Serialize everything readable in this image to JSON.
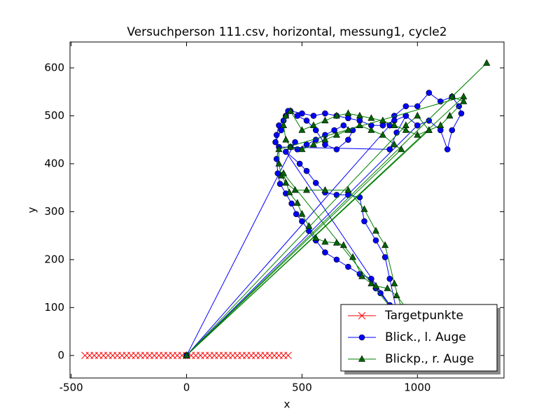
{
  "chart_data": {
    "type": "line",
    "title": "Versuchperson 111.csv, horizontal, messung1, cycle2",
    "x_label": "x",
    "y_label": "y",
    "xlim": [
      -505,
      1375
    ],
    "ylim": [
      -47,
      654
    ],
    "xticks": [
      -500,
      0,
      500,
      1000
    ],
    "yticks": [
      0,
      100,
      200,
      300,
      400,
      500,
      600
    ],
    "legend": "lower right",
    "series": [
      {
        "name": "Targetpunkte",
        "color": "#ff0000",
        "marker": "x",
        "line": false,
        "x": [
          -440,
          -420,
          -400,
          -380,
          -360,
          -340,
          -320,
          -300,
          -280,
          -260,
          -240,
          -220,
          -200,
          -180,
          -160,
          -140,
          -120,
          -100,
          -80,
          -60,
          -40,
          -20,
          0,
          20,
          40,
          60,
          80,
          100,
          120,
          140,
          160,
          180,
          200,
          220,
          240,
          260,
          280,
          300,
          320,
          340,
          360,
          380,
          400,
          420,
          440
        ],
        "values": [
          0,
          0,
          0,
          0,
          0,
          0,
          0,
          0,
          0,
          0,
          0,
          0,
          0,
          0,
          0,
          0,
          0,
          0,
          0,
          0,
          0,
          0,
          0,
          0,
          0,
          0,
          0,
          0,
          0,
          0,
          0,
          0,
          0,
          0,
          0,
          0,
          0,
          0,
          0,
          0,
          0,
          0,
          0,
          0,
          0
        ]
      },
      {
        "name": "Blick., l. Auge",
        "color": "#0000ff",
        "marker": "o",
        "line": true,
        "x": [
          0,
          880,
          900,
          950,
          1000,
          1050,
          1100,
          1150,
          1180,
          1190,
          1150,
          1130,
          1100,
          1050,
          1000,
          950,
          900,
          850,
          800,
          750,
          700,
          650,
          600,
          550,
          500,
          450,
          420,
          400,
          390,
          385,
          410,
          430,
          440,
          480,
          520,
          560,
          600,
          650,
          700,
          720,
          680,
          640,
          600,
          560,
          520,
          480,
          450,
          470,
          0,
          1000,
          950,
          910,
          880,
          400,
          390,
          395,
          405,
          430,
          455,
          475,
          500,
          530,
          560,
          600,
          650,
          700,
          750,
          800,
          820,
          840,
          880,
          430,
          490,
          520,
          560,
          600,
          650,
          700,
          750,
          770,
          820,
          860,
          880,
          920
        ],
        "values": [
          0,
          480,
          500,
          520,
          520,
          548,
          530,
          540,
          520,
          505,
          470,
          430,
          470,
          490,
          480,
          500,
          490,
          480,
          480,
          490,
          495,
          500,
          505,
          500,
          505,
          510,
          490,
          480,
          460,
          445,
          470,
          500,
          510,
          500,
          490,
          470,
          440,
          430,
          450,
          470,
          480,
          470,
          460,
          450,
          440,
          430,
          435,
          445,
          0,
          480,
          500,
          465,
          430,
          435,
          410,
          380,
          358,
          338,
          317,
          295,
          280,
          260,
          240,
          215,
          200,
          185,
          170,
          160,
          140,
          130,
          105,
          425,
          400,
          385,
          360,
          340,
          335,
          335,
          330,
          280,
          240,
          205,
          160,
          70
        ]
      },
      {
        "name": "Blickp., r. Auge",
        "color": "#008000",
        "marker": "^",
        "line": true,
        "x": [
          0,
          1300,
          1150,
          1200,
          1140,
          1100,
          1050,
          1000,
          950,
          900,
          850,
          800,
          750,
          700,
          650,
          600,
          550,
          500,
          450,
          430,
          420,
          430,
          450,
          500,
          550,
          600,
          650,
          700,
          750,
          800,
          850,
          900,
          930,
          0,
          1050,
          1000,
          950,
          0,
          1200,
          400,
          400,
          410,
          430,
          470,
          520,
          600,
          700,
          770,
          820,
          860,
          900,
          930,
          950,
          420,
          445,
          480,
          500,
          530,
          560,
          600,
          650,
          680,
          720,
          760,
          800,
          820,
          870,
          910,
          950,
          1000
        ],
        "values": [
          0,
          610,
          540,
          530,
          500,
          480,
          470,
          460,
          470,
          480,
          490,
          495,
          500,
          505,
          500,
          490,
          480,
          470,
          510,
          500,
          480,
          450,
          435,
          430,
          440,
          450,
          460,
          470,
          480,
          470,
          460,
          440,
          430,
          0,
          470,
          500,
          480,
          0,
          540,
          430,
          400,
          375,
          360,
          345,
          345,
          345,
          345,
          305,
          260,
          230,
          150,
          100,
          60,
          380,
          340,
          318,
          295,
          270,
          245,
          237,
          235,
          230,
          205,
          165,
          150,
          145,
          140,
          125,
          100,
          60
        ]
      }
    ]
  }
}
